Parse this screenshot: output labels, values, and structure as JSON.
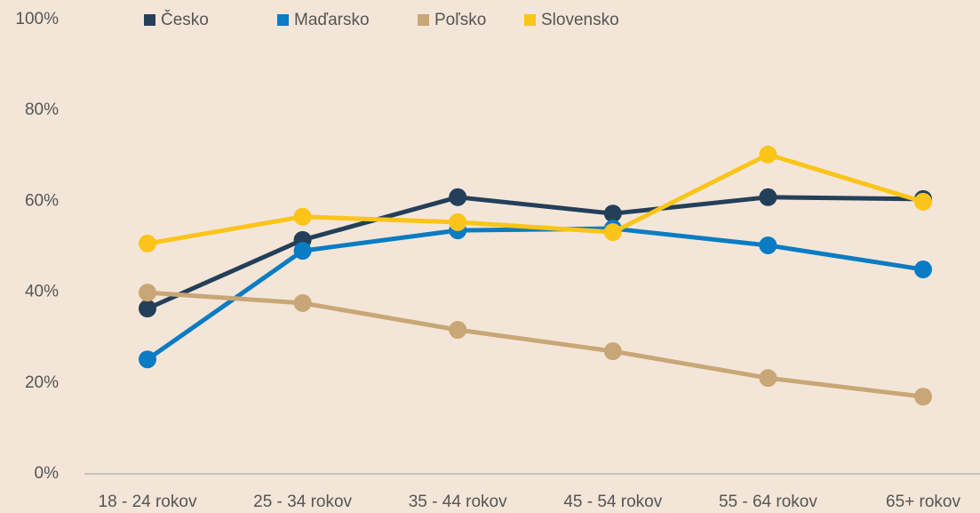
{
  "chart_data": {
    "type": "line",
    "categories": [
      "18 - 24 rokov",
      "25 - 34 rokov",
      "35 - 44 rokov",
      "45 - 54 rokov",
      "55 - 64 rokov",
      "65+ rokov"
    ],
    "series": [
      {
        "name": "Česko",
        "color": "#243f5a",
        "values": [
          36.4,
          51.5,
          60.9,
          57.3,
          60.9,
          60.5
        ]
      },
      {
        "name": "Maďarsko",
        "color": "#0a7cc4",
        "values": [
          25.2,
          49.1,
          53.6,
          54,
          50.3,
          45
        ]
      },
      {
        "name": "Poľsko",
        "color": "#c9a676",
        "values": [
          39.9,
          37.6,
          31.7,
          27,
          21.1,
          17
        ]
      },
      {
        "name": "Slovensko",
        "color": "#fcc419",
        "values": [
          50.7,
          56.6,
          55.4,
          53.2,
          70.3,
          59.9
        ]
      }
    ],
    "ylim": [
      0,
      100
    ],
    "yticks": [
      {
        "value": 0,
        "label": "0%"
      },
      {
        "value": 20,
        "label": "20%"
      },
      {
        "value": 40,
        "label": "40%"
      },
      {
        "value": 60,
        "label": "60%"
      },
      {
        "value": 80,
        "label": "80%"
      },
      {
        "value": 100,
        "label": "100%"
      }
    ],
    "grid": false
  }
}
